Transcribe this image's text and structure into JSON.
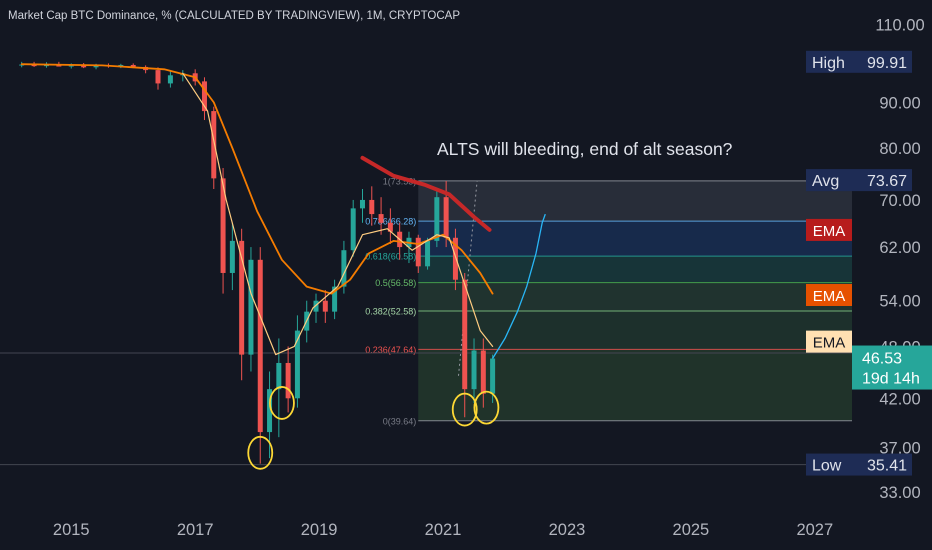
{
  "header": {
    "title": "Market Cap BTC Dominance, % (CALCULATED BY TRADINGVIEW), 1M, CRYPTOCAP"
  },
  "annotation": {
    "text": "ALTS will bleeding, end of alt season?"
  },
  "colors": {
    "background": "#131722",
    "up": "#26a69a",
    "down": "#ef5350",
    "ema_red": "#c62828",
    "ema_orange": "#f57c00",
    "ema_tan": "#ffcc80",
    "price_tag": "#26a69a",
    "label_navy": "#1e2c55",
    "projection": "#29b6f6",
    "circle": "#fdd835"
  },
  "chart_data": {
    "type": "candlestick",
    "title": "Market Cap BTC Dominance, % (CALCULATED BY TRADINGVIEW), 1M, CRYPTOCAP",
    "x_tick_labels": [
      "2015",
      "2017",
      "2019",
      "2021",
      "2023",
      "2025",
      "2027"
    ],
    "x_ticks": [
      2015,
      2017,
      2019,
      2021,
      2023,
      2025,
      2027
    ],
    "y_tick_labels": [
      "110.00",
      "90.00",
      "80.00",
      "70.00",
      "62.00",
      "54.00",
      "48.00",
      "42.00",
      "37.00",
      "33.00"
    ],
    "y_ticks": [
      110,
      90,
      80,
      70,
      62,
      54,
      48,
      42,
      37,
      33
    ],
    "y_scale": "log",
    "ylim": [
      31.5,
      113
    ],
    "xlim": [
      2013.85,
      2027.6
    ],
    "grid": false,
    "candles": [
      {
        "t": 2014.2,
        "o": 99.0,
        "h": 99.9,
        "l": 98.5,
        "c": 99.2
      },
      {
        "t": 2014.4,
        "o": 99.2,
        "h": 99.9,
        "l": 98.6,
        "c": 98.8
      },
      {
        "t": 2014.6,
        "o": 98.8,
        "h": 99.8,
        "l": 98.4,
        "c": 99.3
      },
      {
        "t": 2014.8,
        "o": 99.3,
        "h": 99.9,
        "l": 98.9,
        "c": 98.7
      },
      {
        "t": 2015.0,
        "o": 98.7,
        "h": 99.5,
        "l": 98.2,
        "c": 99.0
      },
      {
        "t": 2015.2,
        "o": 99.0,
        "h": 99.6,
        "l": 98.3,
        "c": 98.5
      },
      {
        "t": 2015.4,
        "o": 98.5,
        "h": 99.4,
        "l": 98.0,
        "c": 99.0
      },
      {
        "t": 2015.6,
        "o": 99.0,
        "h": 99.5,
        "l": 98.4,
        "c": 98.8
      },
      {
        "t": 2015.8,
        "o": 98.8,
        "h": 99.4,
        "l": 98.3,
        "c": 99.1
      },
      {
        "t": 2016.0,
        "o": 99.1,
        "h": 99.5,
        "l": 98.3,
        "c": 98.6
      },
      {
        "t": 2016.2,
        "o": 98.6,
        "h": 99.0,
        "l": 97.0,
        "c": 97.8
      },
      {
        "t": 2016.4,
        "o": 97.8,
        "h": 98.5,
        "l": 93.0,
        "c": 94.5
      },
      {
        "t": 2016.6,
        "o": 94.5,
        "h": 97.5,
        "l": 93.5,
        "c": 96.5
      },
      {
        "t": 2016.8,
        "o": 96.5,
        "h": 97.8,
        "l": 95.0,
        "c": 97.0
      },
      {
        "t": 2017.0,
        "o": 97.0,
        "h": 98.0,
        "l": 94.0,
        "c": 95.0
      },
      {
        "t": 2017.15,
        "o": 95.0,
        "h": 96.0,
        "l": 86.0,
        "c": 88.0
      },
      {
        "t": 2017.3,
        "o": 88.0,
        "h": 89.0,
        "l": 72.0,
        "c": 74.0
      },
      {
        "t": 2017.45,
        "o": 74.0,
        "h": 76.0,
        "l": 55.0,
        "c": 58.0
      },
      {
        "t": 2017.6,
        "o": 58.0,
        "h": 66.0,
        "l": 55.5,
        "c": 63.0
      },
      {
        "t": 2017.75,
        "o": 63.0,
        "h": 65.0,
        "l": 44.0,
        "c": 47.0
      },
      {
        "t": 2017.9,
        "o": 47.0,
        "h": 62.0,
        "l": 45.0,
        "c": 60.0
      },
      {
        "t": 2018.05,
        "o": 60.0,
        "h": 62.0,
        "l": 35.5,
        "c": 38.5
      },
      {
        "t": 2018.2,
        "o": 38.5,
        "h": 45.0,
        "l": 36.0,
        "c": 43.0
      },
      {
        "t": 2018.35,
        "o": 43.0,
        "h": 49.0,
        "l": 38.0,
        "c": 46.0
      },
      {
        "t": 2018.5,
        "o": 46.0,
        "h": 48.0,
        "l": 40.5,
        "c": 42.0
      },
      {
        "t": 2018.65,
        "o": 42.0,
        "h": 52.0,
        "l": 41.0,
        "c": 50.0
      },
      {
        "t": 2018.8,
        "o": 50.0,
        "h": 54.0,
        "l": 48.5,
        "c": 52.5
      },
      {
        "t": 2018.95,
        "o": 52.5,
        "h": 55.0,
        "l": 51.0,
        "c": 54.0
      },
      {
        "t": 2019.1,
        "o": 54.0,
        "h": 55.5,
        "l": 51.0,
        "c": 52.5
      },
      {
        "t": 2019.25,
        "o": 52.5,
        "h": 57.0,
        "l": 51.5,
        "c": 56.0
      },
      {
        "t": 2019.4,
        "o": 56.0,
        "h": 63.0,
        "l": 55.0,
        "c": 61.5
      },
      {
        "t": 2019.55,
        "o": 61.5,
        "h": 70.0,
        "l": 60.5,
        "c": 68.5
      },
      {
        "t": 2019.7,
        "o": 68.5,
        "h": 72.0,
        "l": 66.0,
        "c": 70.0
      },
      {
        "t": 2019.85,
        "o": 70.0,
        "h": 72.5,
        "l": 65.5,
        "c": 67.5
      },
      {
        "t": 2020.0,
        "o": 67.5,
        "h": 70.5,
        "l": 64.0,
        "c": 66.0
      },
      {
        "t": 2020.15,
        "o": 66.0,
        "h": 68.5,
        "l": 62.5,
        "c": 64.5
      },
      {
        "t": 2020.3,
        "o": 64.5,
        "h": 66.0,
        "l": 60.0,
        "c": 62.0
      },
      {
        "t": 2020.45,
        "o": 62.0,
        "h": 64.5,
        "l": 59.5,
        "c": 63.5
      },
      {
        "t": 2020.6,
        "o": 63.5,
        "h": 64.0,
        "l": 58.0,
        "c": 59.0
      },
      {
        "t": 2020.75,
        "o": 59.0,
        "h": 63.5,
        "l": 58.5,
        "c": 63.0
      },
      {
        "t": 2020.9,
        "o": 63.0,
        "h": 72.0,
        "l": 62.0,
        "c": 70.5
      },
      {
        "t": 2021.05,
        "o": 70.5,
        "h": 73.5,
        "l": 62.0,
        "c": 63.5
      },
      {
        "t": 2021.2,
        "o": 63.5,
        "h": 65.0,
        "l": 55.5,
        "c": 57.0
      },
      {
        "t": 2021.35,
        "o": 57.0,
        "h": 58.0,
        "l": 40.0,
        "c": 43.0
      },
      {
        "t": 2021.5,
        "o": 43.0,
        "h": 49.0,
        "l": 41.5,
        "c": 47.5
      },
      {
        "t": 2021.65,
        "o": 47.5,
        "h": 49.0,
        "l": 41.0,
        "c": 42.5
      },
      {
        "t": 2021.8,
        "o": 42.5,
        "h": 47.0,
        "l": 41.5,
        "c": 46.53
      }
    ],
    "ema_series": [
      {
        "label": "EMA",
        "color": "#c62828",
        "points": [
          [
            2019.7,
            78.0
          ],
          [
            2020.2,
            74.5
          ],
          [
            2020.7,
            72.8
          ],
          [
            2021.1,
            71.0
          ],
          [
            2021.5,
            67.0
          ],
          [
            2021.75,
            64.8
          ]
        ]
      },
      {
        "label": "EMA",
        "color": "#f57c00",
        "points": [
          [
            2014.2,
            99.3
          ],
          [
            2015.5,
            99.0
          ],
          [
            2016.5,
            98.0
          ],
          [
            2017.0,
            96.0
          ],
          [
            2017.3,
            90.0
          ],
          [
            2017.6,
            80.0
          ],
          [
            2018.0,
            68.0
          ],
          [
            2018.4,
            60.0
          ],
          [
            2018.8,
            56.0
          ],
          [
            2019.2,
            55.0
          ],
          [
            2019.5,
            57.0
          ],
          [
            2019.8,
            61.0
          ],
          [
            2020.2,
            63.0
          ],
          [
            2020.6,
            62.5
          ],
          [
            2021.0,
            64.0
          ],
          [
            2021.3,
            61.5
          ],
          [
            2021.6,
            58.0
          ],
          [
            2021.8,
            55.0
          ]
        ]
      },
      {
        "label": "EMA",
        "color": "#ffcc80",
        "points": [
          [
            2016.8,
            97.0
          ],
          [
            2017.2,
            88.0
          ],
          [
            2017.5,
            70.0
          ],
          [
            2017.9,
            55.0
          ],
          [
            2018.3,
            47.0
          ],
          [
            2018.6,
            48.0
          ],
          [
            2018.9,
            53.0
          ],
          [
            2019.3,
            56.0
          ],
          [
            2019.7,
            64.0
          ],
          [
            2020.1,
            65.0
          ],
          [
            2020.5,
            61.5
          ],
          [
            2020.9,
            64.0
          ],
          [
            2021.1,
            63.5
          ],
          [
            2021.4,
            55.0
          ],
          [
            2021.6,
            50.0
          ],
          [
            2021.8,
            48.0
          ]
        ]
      }
    ],
    "fib_levels": [
      {
        "ratio": "1",
        "value": 73.53,
        "label": "1(73.53)"
      },
      {
        "ratio": "0.786",
        "value": 66.28,
        "label": "0.786(66.28)"
      },
      {
        "ratio": "0.618",
        "value": 60.58,
        "label": "0.618(60.58)"
      },
      {
        "ratio": "0.5",
        "value": 56.58,
        "label": "0.5(56.58)"
      },
      {
        "ratio": "0.382",
        "value": 52.58,
        "label": "0.382(52.58)"
      },
      {
        "ratio": "0.236",
        "value": 47.64,
        "label": "0.236(47.64)"
      },
      {
        "ratio": "0",
        "value": 39.64,
        "label": "0(39.64)"
      }
    ],
    "fib_range": {
      "x_start": 2020.6,
      "x_end": 2027.6
    },
    "fib_zone_colors": [
      "#3a3f4d",
      "#1c3a6e",
      "#1b4d4a",
      "#2b4b3a",
      "#264634",
      "#2c4b31",
      "#4a1f27"
    ],
    "projection": [
      [
        2021.8,
        46.53
      ],
      [
        2022.0,
        49.0
      ],
      [
        2022.2,
        52.5
      ],
      [
        2022.35,
        56.0
      ],
      [
        2022.5,
        61.0
      ],
      [
        2022.6,
        66.0
      ],
      [
        2022.65,
        67.5
      ]
    ],
    "trend_line": [
      [
        2021.25,
        44.5
      ],
      [
        2021.55,
        73.5
      ]
    ],
    "horizontal_lines": [
      {
        "value": 47.2
      },
      {
        "value": 35.41
      }
    ],
    "price_labels": [
      {
        "text": "High",
        "value_text": "99.91",
        "value": 99.91
      },
      {
        "text": "Avg",
        "value_text": "73.67",
        "value": 73.67
      },
      {
        "text": "EMA",
        "value": 64.8
      },
      {
        "text": "EMA",
        "value": 54.8
      },
      {
        "text": "EMA",
        "value": 48.6
      },
      {
        "text": "Low",
        "value_text": "35.41",
        "value": 35.41
      }
    ],
    "current_price": {
      "value": 46.53,
      "text": "46.53",
      "countdown": "19d 14h"
    },
    "circled_lows": [
      [
        2018.05,
        36.5
      ],
      [
        2018.4,
        41.5
      ],
      [
        2021.35,
        40.8
      ],
      [
        2021.7,
        41.0
      ]
    ]
  }
}
